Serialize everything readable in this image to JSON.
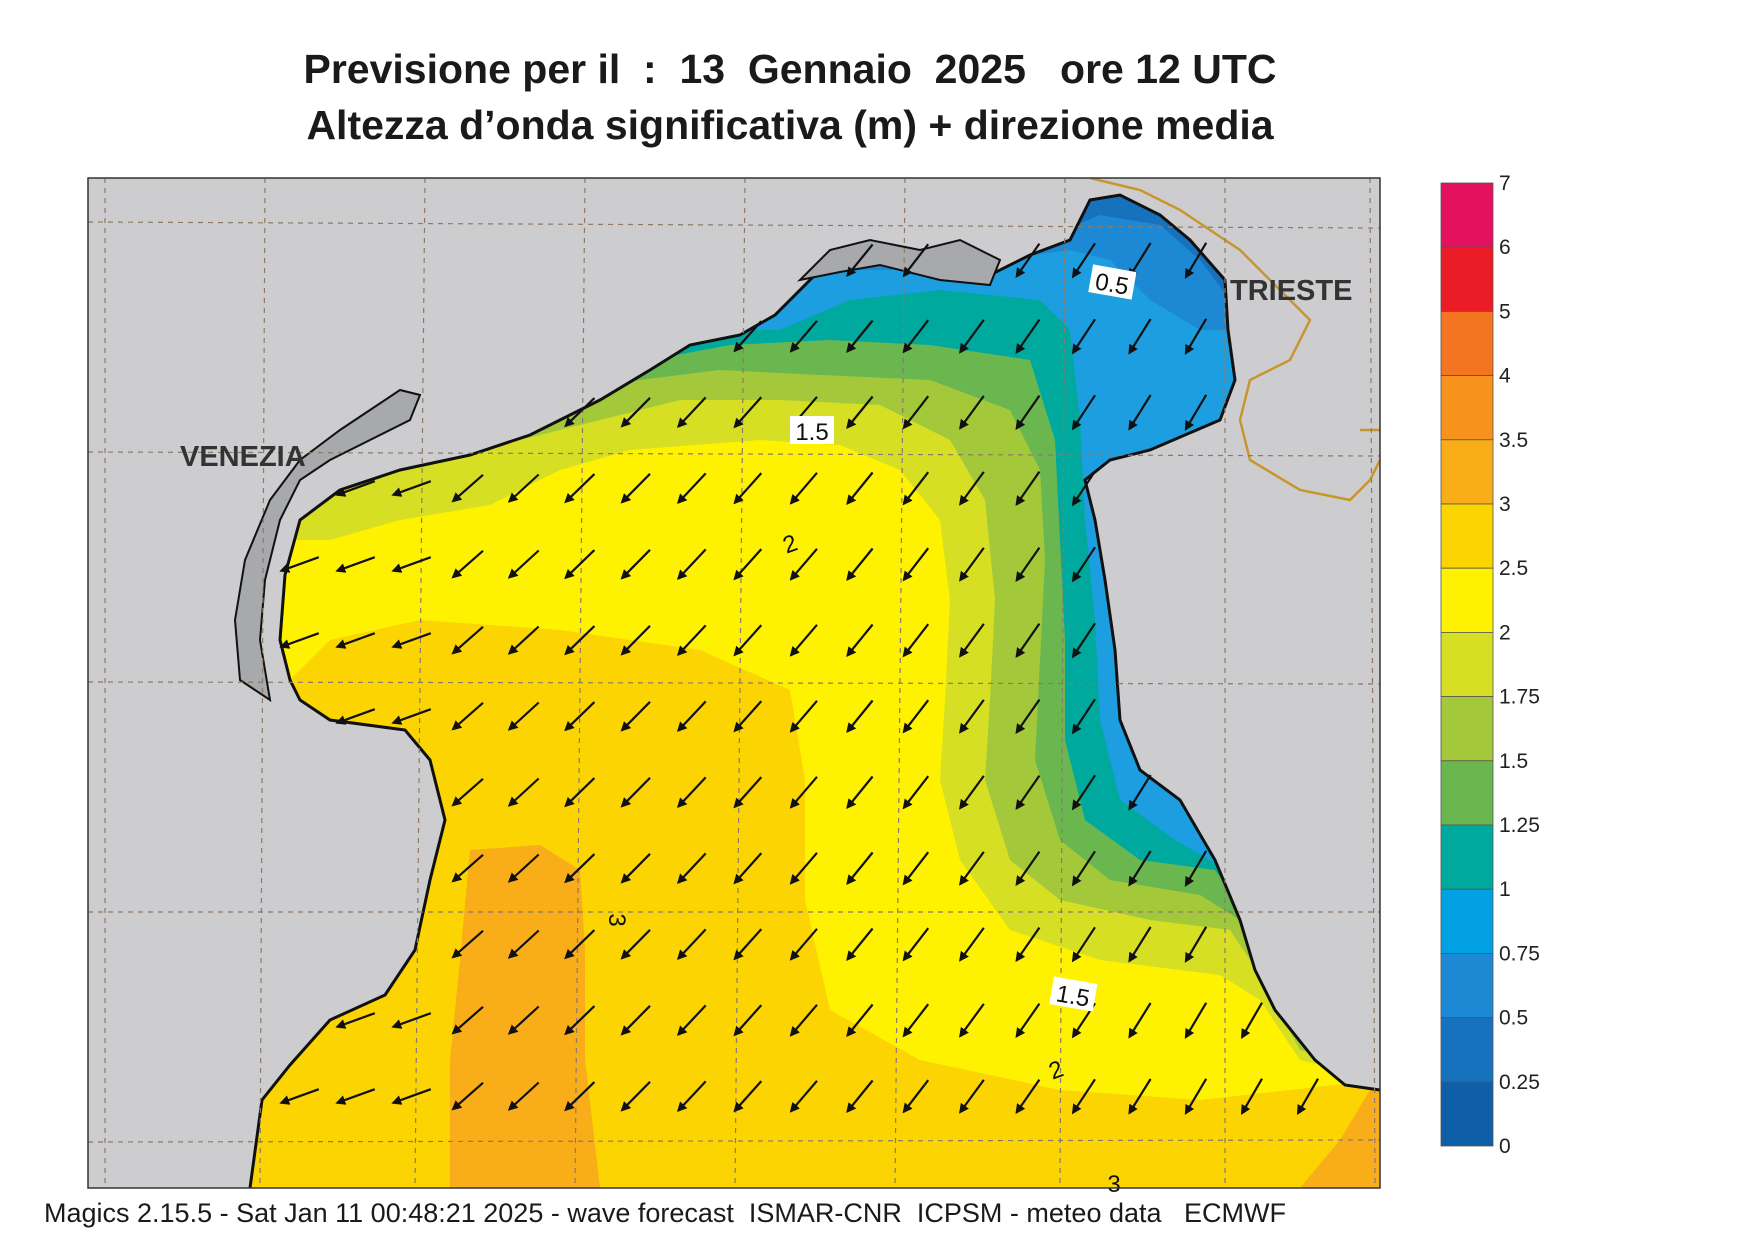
{
  "title": {
    "line1": "Previsione per il  :  13  Gennaio  2025   ore 12 UTC",
    "line2": "Altezza d’onda significativa (m) + direzione media"
  },
  "cities": {
    "venezia": "VENEZIA",
    "trieste": "TRIESTE"
  },
  "contour_labels": [
    "0.5",
    "1.5",
    "2",
    "3",
    "1.5",
    "2",
    "3"
  ],
  "legend": {
    "ticks": [
      "7",
      "6",
      "5",
      "4",
      "3.5",
      "3",
      "2.5",
      "2",
      "1.75",
      "1.5",
      "1.25",
      "1",
      "0.75",
      "0.5",
      "0.25",
      "0"
    ],
    "colors": [
      "#e4125e",
      "#ec1c26",
      "#f47521",
      "#f7921d",
      "#f9ad18",
      "#fbd401",
      "#fff200",
      "#d6df23",
      "#a3c93a",
      "#6ab750",
      "#00a99d",
      "#00a0e3",
      "#1d89d4",
      "#1672bd",
      "#0f5ea8"
    ]
  },
  "colors": {
    "land": "#cdcdd0",
    "lagoon": "#a7a9ac",
    "border": "#c8962e",
    "grid": "#8c7a66"
  },
  "icons": {
    "arrow": "wave-direction-arrow"
  },
  "footer": "Magics 2.15.5 - Sat Jan 11 00:48:21 2025 - wave forecast  ISMAR-CNR  ICPSM - meteo data   ECMWF"
}
